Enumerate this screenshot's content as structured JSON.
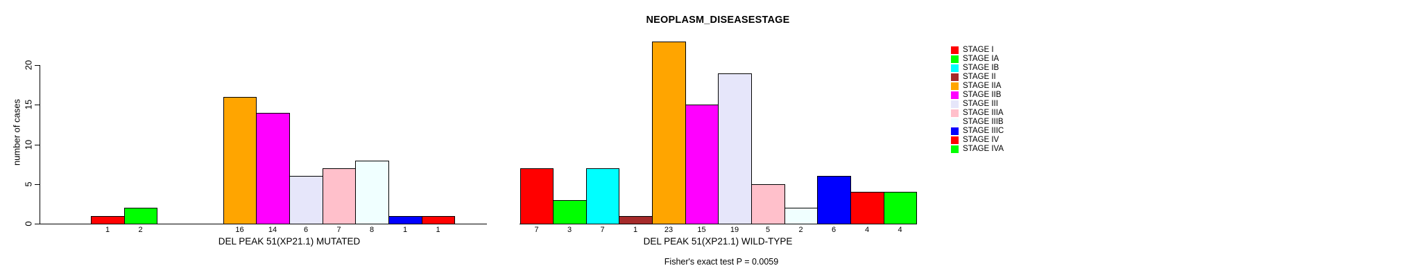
{
  "chart_data": {
    "type": "bar",
    "title": "NEOPLASM_DISEASESTAGE",
    "ylabel": "number of cases",
    "ylim": [
      0,
      20
    ],
    "yticks": [
      0,
      5,
      10,
      15,
      20
    ],
    "grid": false,
    "legend_position": "right",
    "categories": [
      "STAGE I",
      "STAGE IA",
      "STAGE IB",
      "STAGE II",
      "STAGE IIA",
      "STAGE IIB",
      "STAGE III",
      "STAGE IIIA",
      "STAGE IIIB",
      "STAGE IIIC",
      "STAGE IV",
      "STAGE IVA"
    ],
    "colors": [
      "#FF0000",
      "#00FF00",
      "#00FFFF",
      "#A52A2A",
      "#FFA500",
      "#FF00FF",
      "#E6E6FA",
      "#FFC0CB",
      "#F0FFFF",
      "#0000FF",
      "#FF0000",
      "#00FF00"
    ],
    "series": [
      {
        "name": "DEL PEAK 51(XP21.1) MUTATED",
        "values": [
          1,
          2,
          0,
          0,
          16,
          14,
          6,
          7,
          8,
          1,
          1,
          0
        ]
      },
      {
        "name": "DEL PEAK 51(XP21.1) WILD-TYPE",
        "values": [
          7,
          3,
          7,
          1,
          23,
          15,
          19,
          5,
          2,
          6,
          4,
          4
        ]
      }
    ],
    "annotation": "Fisher's exact test P = 0.0059",
    "axis_color": "#000000",
    "background": "#FFFFFF"
  }
}
